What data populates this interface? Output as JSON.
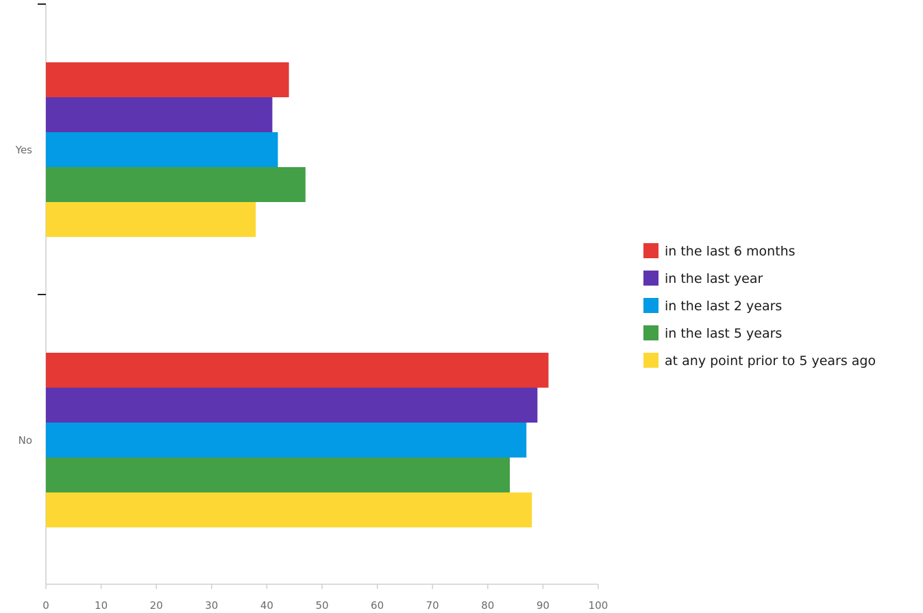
{
  "chart_data": {
    "type": "bar",
    "orientation": "horizontal",
    "categories": [
      "Yes",
      "No"
    ],
    "series": [
      {
        "name": "in the last 6 months",
        "color": "#e53935",
        "values": [
          44,
          91
        ]
      },
      {
        "name": "in the last year",
        "color": "#5e35b1",
        "values": [
          41,
          89
        ]
      },
      {
        "name": "in the last 2 years",
        "color": "#039be5",
        "values": [
          42,
          87
        ]
      },
      {
        "name": "in the last 5 years",
        "color": "#43a047",
        "values": [
          47,
          84
        ]
      },
      {
        "name": "at any point prior to 5 years ago",
        "color": "#fdd835",
        "values": [
          38,
          88
        ]
      }
    ],
    "xlim": [
      0,
      100
    ],
    "xticks": [
      "0",
      "10",
      "20",
      "30",
      "40",
      "50",
      "60",
      "70",
      "80",
      "90",
      "100"
    ],
    "grid": false,
    "legend_position": "right"
  }
}
